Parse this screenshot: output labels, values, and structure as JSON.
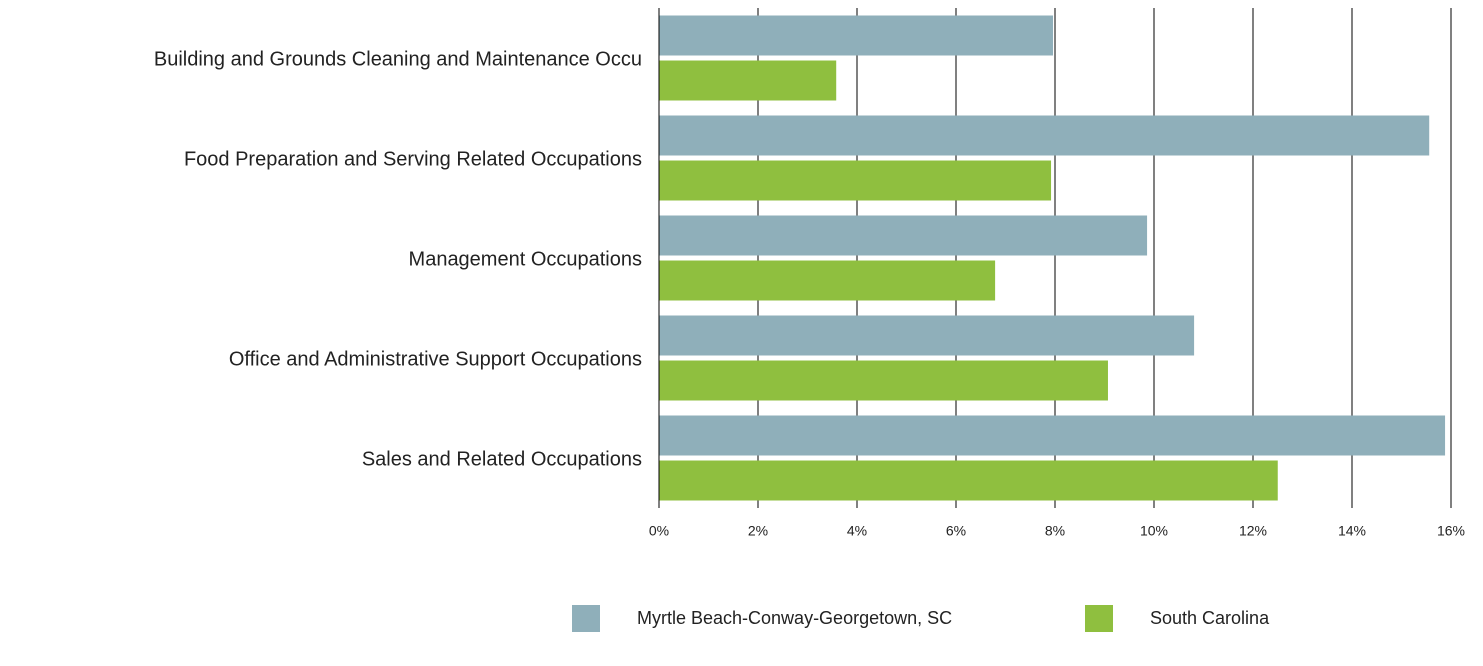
{
  "chart_data": {
    "type": "bar",
    "orientation": "horizontal",
    "categories": [
      "Building and Grounds Cleaning and Maintenance Occu",
      "Food Preparation and Serving Related Occupations",
      "Management Occupations",
      "Office and Administrative Support Occupations",
      "Sales and Related Occupations"
    ],
    "series": [
      {
        "name": "Myrtle Beach-Conway-Georgetown, SC",
        "color": "#8fafba",
        "values": [
          7.96,
          15.56,
          9.86,
          10.81,
          15.88
        ]
      },
      {
        "name": "South Carolina",
        "color": "#8fbf3f",
        "values": [
          3.58,
          7.92,
          6.79,
          9.07,
          12.5
        ]
      }
    ],
    "xlim": [
      0,
      16
    ],
    "xticks": [
      {
        "value": 0,
        "label": "0%"
      },
      {
        "value": 2,
        "label": "2%"
      },
      {
        "value": 4,
        "label": "4%"
      },
      {
        "value": 6,
        "label": "6%"
      },
      {
        "value": 8,
        "label": "8%"
      },
      {
        "value": 10,
        "label": "10%"
      },
      {
        "value": 12,
        "label": "12%"
      },
      {
        "value": 14,
        "label": "14%"
      },
      {
        "value": 16,
        "label": "16%"
      }
    ],
    "grid": true,
    "legend": "bottom"
  }
}
